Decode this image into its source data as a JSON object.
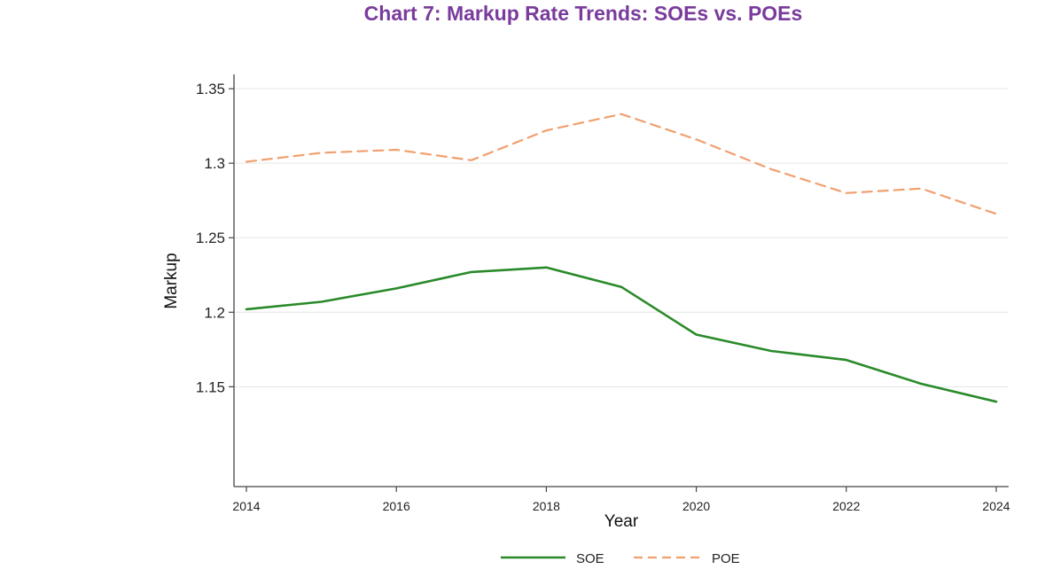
{
  "chart_data": {
    "type": "line",
    "title": "Chart 7: Markup Rate Trends: SOEs vs. POEs",
    "xlabel": "Year",
    "ylabel": "Markup",
    "x": [
      2014,
      2015,
      2016,
      2017,
      2018,
      2019,
      2020,
      2021,
      2022,
      2023,
      2024
    ],
    "xticks": [
      "2014",
      "2016",
      "2018",
      "2020",
      "2022",
      "2024"
    ],
    "yticks": [
      "1.15",
      "1.2",
      "1.25",
      "1.3",
      "1.35"
    ],
    "xlim": [
      2014,
      2024
    ],
    "ylim": [
      1.083,
      1.356
    ],
    "grid": "horizontal",
    "legend_position": "bottom",
    "series": [
      {
        "name": "SOE",
        "color": "#2a8a2a",
        "style": "solid",
        "values": [
          1.202,
          1.207,
          1.216,
          1.227,
          1.23,
          1.217,
          1.185,
          1.174,
          1.168,
          1.152,
          1.14
        ]
      },
      {
        "name": "POE",
        "color": "#f0a070",
        "style": "dashed",
        "values": [
          1.301,
          1.307,
          1.309,
          1.302,
          1.322,
          1.333,
          1.316,
          1.296,
          1.28,
          1.283,
          1.266
        ]
      }
    ]
  }
}
